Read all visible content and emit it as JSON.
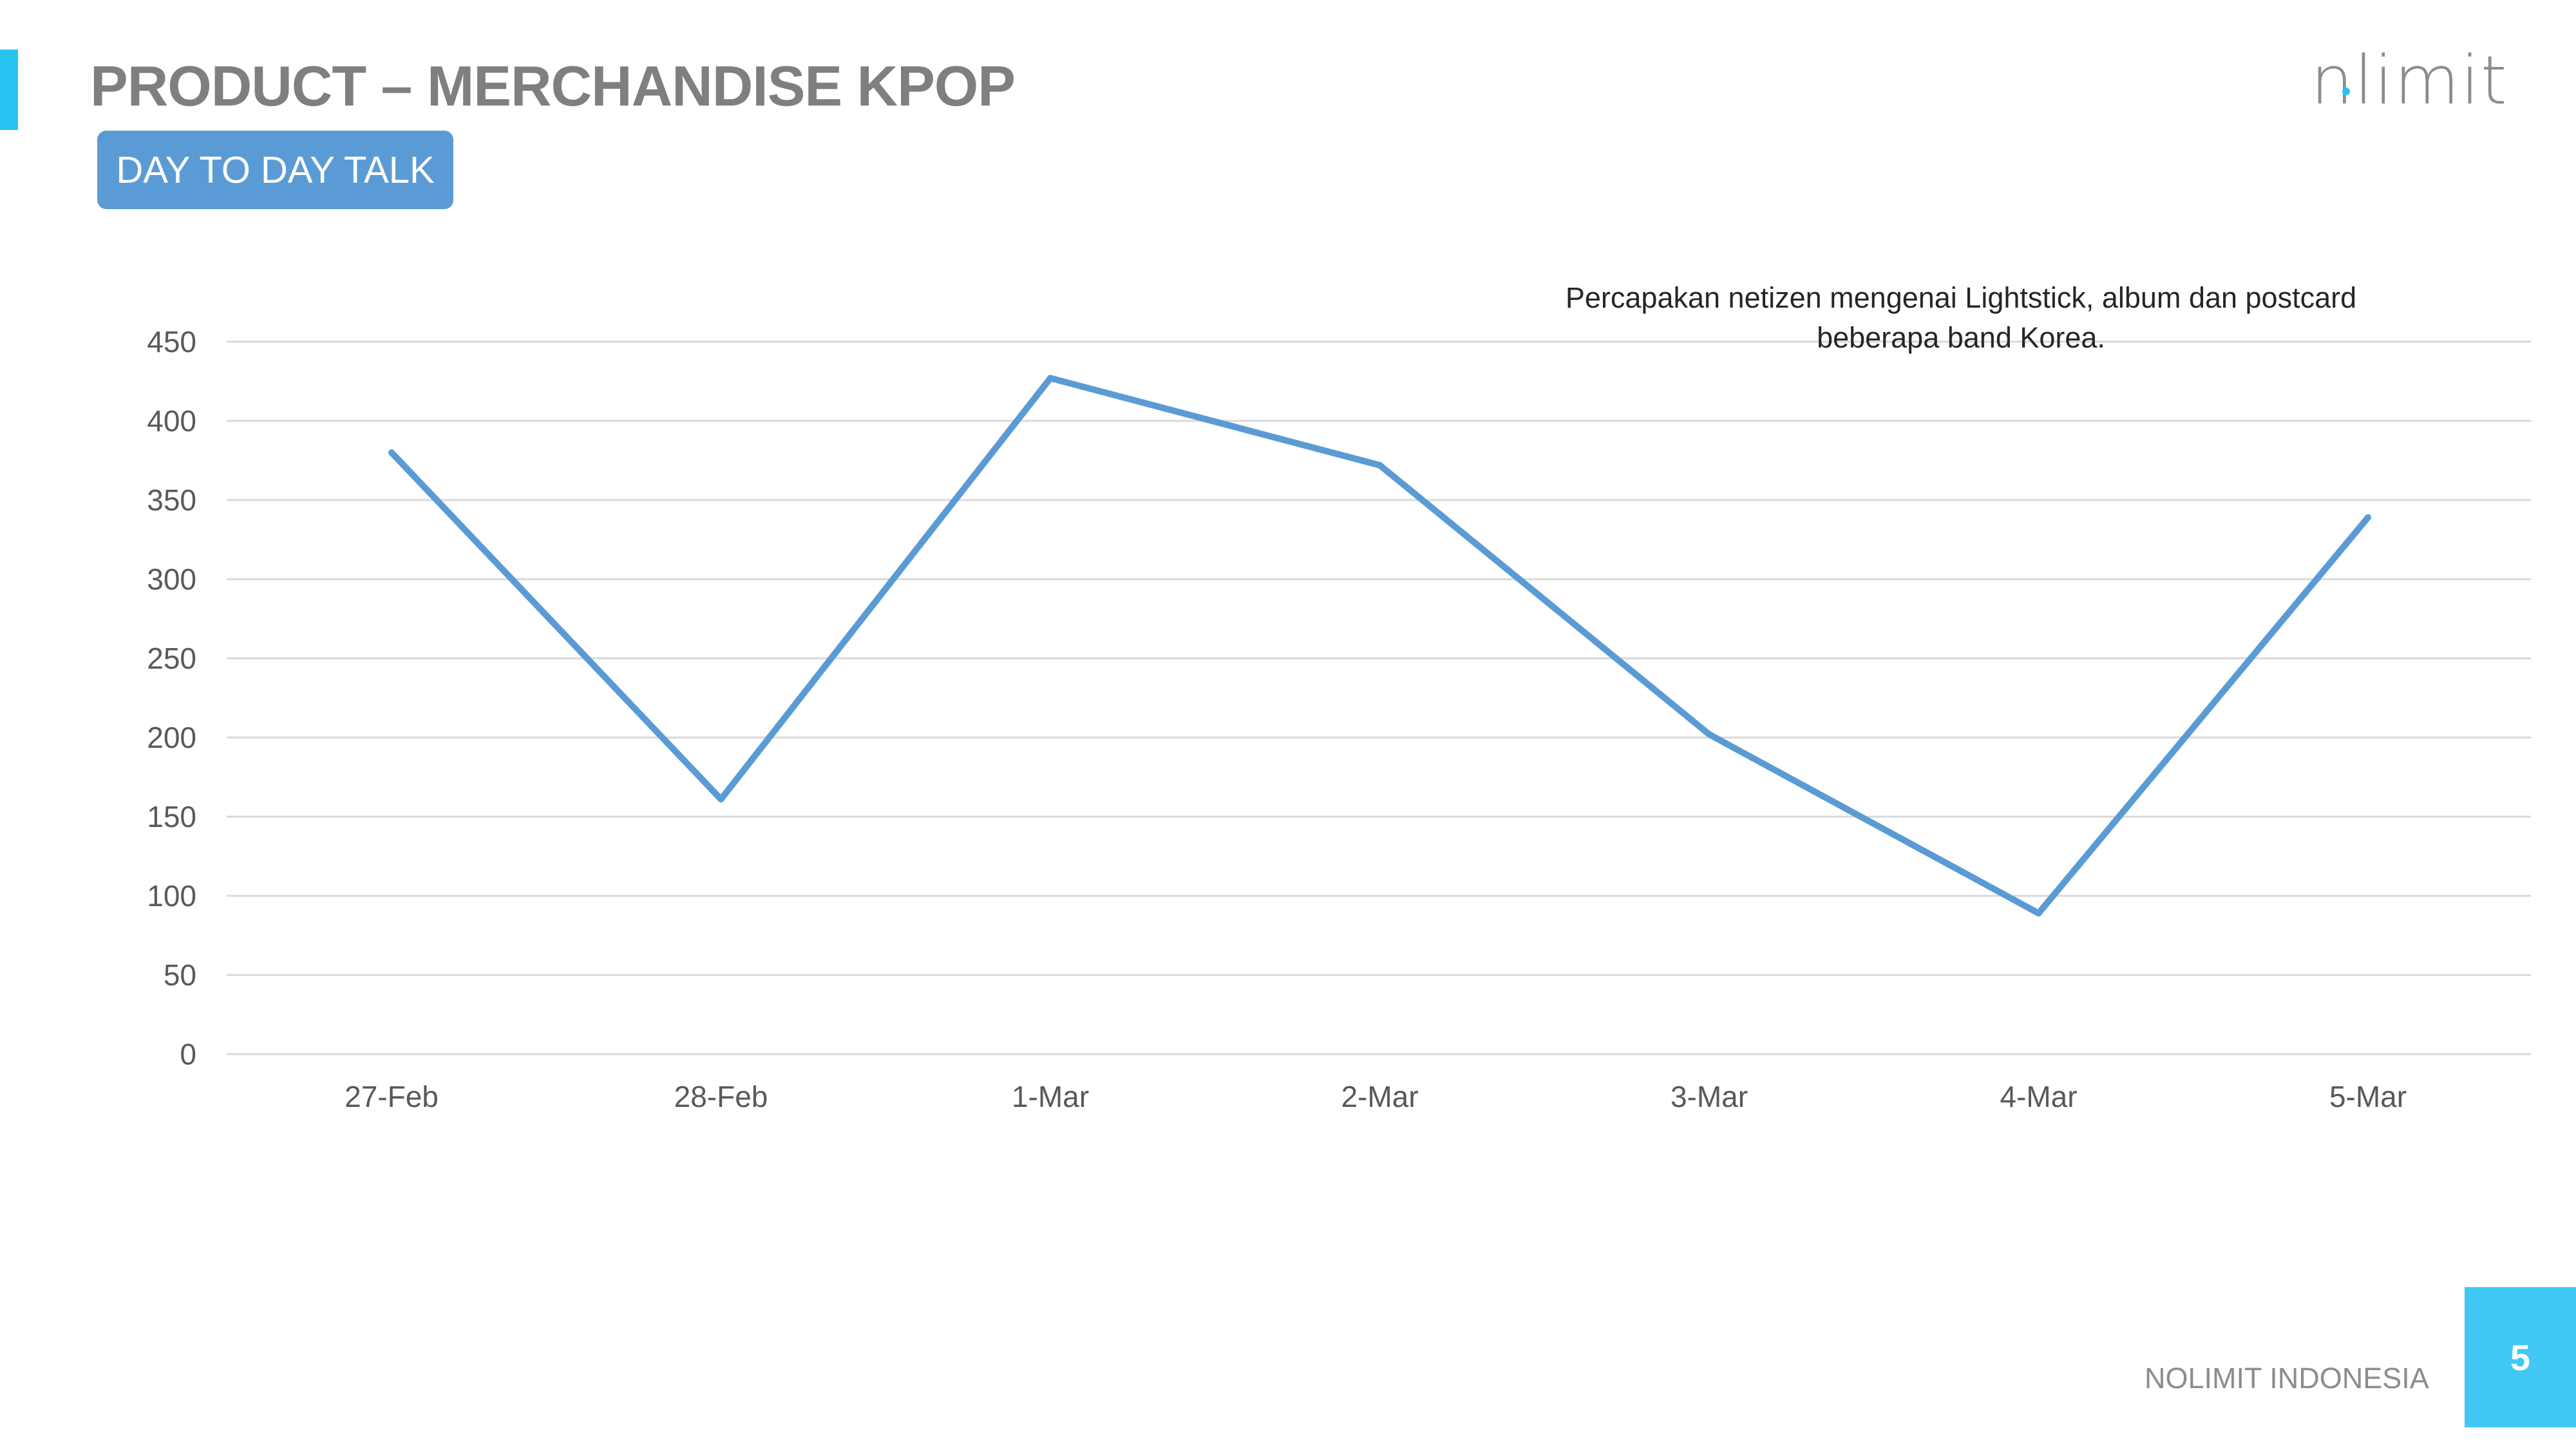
{
  "header": {
    "title": "PRODUCT – MERCHANDISE KPOP",
    "tag_label": "DAY TO DAY TALK",
    "logo_text": "nlimit"
  },
  "colors": {
    "accent": "#29c3f2",
    "tag_fill": "#5b9bd5",
    "series_line": "#5b9bd5",
    "title_text": "#7f7f7f",
    "gridline": "#d9d9d9"
  },
  "chart_data": {
    "type": "line",
    "categories": [
      "27-Feb",
      "28-Feb",
      "1-Mar",
      "2-Mar",
      "3-Mar",
      "4-Mar",
      "5-Mar"
    ],
    "series": [
      {
        "values": [
          380,
          161,
          427,
          372,
          202,
          89,
          339
        ]
      }
    ],
    "ylim": [
      0,
      450
    ],
    "yticks": [
      0,
      50,
      100,
      150,
      200,
      250,
      300,
      350,
      400,
      450
    ],
    "grid": true,
    "annotation": "Percapakan netizen mengenai Lightstick, album dan postcard beberapa band Korea."
  },
  "footer": {
    "label": "NOLIMIT INDONESIA",
    "page_number": "5"
  }
}
